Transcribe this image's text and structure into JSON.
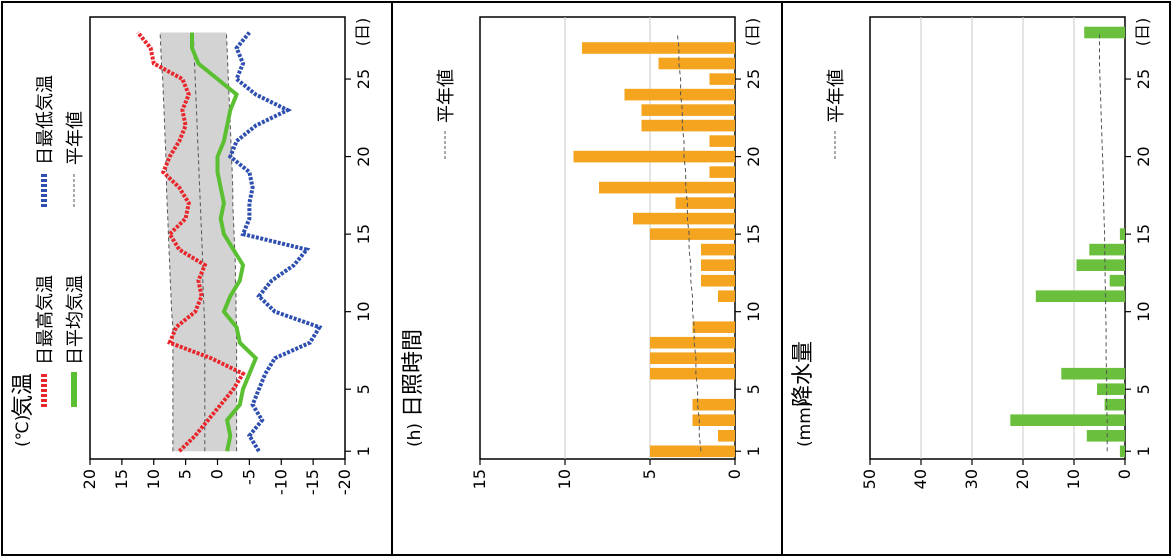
{
  "chart_data": [
    {
      "type": "line",
      "title": "気温",
      "unit_label": "(℃)",
      "xlabel": "(日)",
      "x_ticks": [
        1,
        5,
        10,
        15,
        20,
        25
      ],
      "y_ticks": [
        20,
        15,
        10,
        5,
        0,
        -5,
        -10,
        -15,
        -20
      ],
      "ylim": [
        -20,
        20
      ],
      "xlim": [
        0.5,
        29
      ],
      "grid": false,
      "legend_position": "top-right",
      "legend": [
        "日最高気温",
        "日最低気温",
        "日平均気温",
        "平年値"
      ],
      "colors": {
        "max": "#e8262b",
        "min": "#2e4fb0",
        "avg": "#5bbf32",
        "normal": "#555555",
        "shade": "#d3d3d3"
      },
      "x": [
        1,
        2,
        3,
        4,
        5,
        6,
        7,
        8,
        9,
        10,
        11,
        12,
        13,
        14,
        15,
        16,
        17,
        18,
        19,
        20,
        21,
        22,
        23,
        24,
        25,
        26,
        27,
        28
      ],
      "series": [
        {
          "name": "日最高気温",
          "values": [
            6,
            3.5,
            1.5,
            -0.5,
            -2.5,
            -4,
            1,
            7.5,
            6.5,
            3.5,
            2.5,
            3,
            2,
            6,
            7.5,
            5,
            4.5,
            6,
            8.5,
            7.5,
            6,
            5,
            5.5,
            4.5,
            5.5,
            10,
            10.5,
            12.5
          ]
        },
        {
          "name": "日最低気温",
          "values": [
            -6.5,
            -5,
            -7,
            -5.5,
            -6.5,
            -7.5,
            -9,
            -14.5,
            -16,
            -9,
            -6.5,
            -8.5,
            -12,
            -14,
            -4,
            -5,
            -5,
            -5.5,
            -5,
            -2,
            -3,
            -6,
            -11,
            -6,
            -3,
            -4,
            -3,
            -5
          ]
        },
        {
          "name": "日平均気温",
          "values": [
            -1.5,
            -2,
            -1.5,
            -3.5,
            -4,
            -5,
            -6,
            -3.5,
            -3,
            -1,
            -2,
            -3.5,
            -4,
            -2.5,
            -1,
            -0.5,
            -1,
            -0.5,
            0,
            0,
            -1,
            -1.5,
            -2,
            -3,
            0,
            3,
            4,
            4
          ]
        },
        {
          "name": "平年値 最高",
          "values": [
            7,
            7,
            7,
            7,
            7,
            7,
            7,
            7,
            7,
            7.2,
            7.3,
            7.4,
            7.5,
            7.6,
            7.7,
            7.8,
            7.9,
            8,
            8,
            8.1,
            8.2,
            8.3,
            8.4,
            8.5,
            8.6,
            8.8,
            8.9,
            9
          ]
        },
        {
          "name": "平年値 平均",
          "values": [
            2,
            2,
            2,
            2,
            2,
            2,
            2,
            2,
            2,
            2.1,
            2.2,
            2.3,
            2.3,
            2.4,
            2.5,
            2.6,
            2.7,
            2.8,
            2.9,
            3,
            3.1,
            3.2,
            3.3,
            3.4,
            3.5,
            3.6,
            3.7,
            3.8
          ]
        },
        {
          "name": "平年値 最低",
          "values": [
            -3,
            -3,
            -3,
            -3,
            -3,
            -3,
            -3,
            -3,
            -3,
            -2.9,
            -2.9,
            -2.8,
            -2.8,
            -2.7,
            -2.6,
            -2.5,
            -2.4,
            -2.4,
            -2.3,
            -2.2,
            -2.1,
            -2,
            -1.9,
            -1.8,
            -1.7,
            -1.6,
            -1.5,
            -1.4
          ]
        }
      ]
    },
    {
      "type": "bar",
      "title": "日照時間",
      "unit_label": "(h)",
      "xlabel": "(日)",
      "x_ticks": [
        1,
        5,
        10,
        15,
        20,
        25
      ],
      "y_ticks": [
        15,
        10,
        5,
        0
      ],
      "ylim": [
        0,
        15
      ],
      "xlim": [
        0.5,
        29
      ],
      "grid": true,
      "legend": [
        "平年値"
      ],
      "colors": {
        "bar": "#f5a41f",
        "normal": "#555555",
        "grid": "#c8c8c8"
      },
      "x": [
        1,
        2,
        3,
        4,
        5,
        6,
        7,
        8,
        9,
        10,
        11,
        12,
        13,
        14,
        15,
        16,
        17,
        18,
        19,
        20,
        21,
        22,
        23,
        24,
        25,
        26,
        27,
        28
      ],
      "values": [
        5,
        1,
        2.5,
        2.5,
        0,
        5,
        5,
        5,
        2.5,
        0,
        1,
        2,
        2,
        2,
        5,
        6,
        3.5,
        8,
        1.5,
        9.5,
        1.5,
        5.5,
        5.5,
        6.5,
        1.5,
        4.5,
        9,
        0
      ],
      "normal": [
        2,
        2.1,
        2.1,
        2.2,
        2.2,
        2.3,
        2.3,
        2.4,
        2.4,
        2.5,
        2.5,
        2.6,
        2.6,
        2.7,
        2.7,
        2.8,
        2.8,
        2.9,
        2.9,
        3,
        3,
        3.1,
        3.1,
        3.2,
        3.2,
        3.3,
        3.3,
        3.4
      ]
    },
    {
      "type": "bar",
      "title": "降水量",
      "unit_label": "(mm)",
      "xlabel": "(日)",
      "x_ticks": [
        1,
        5,
        10,
        15,
        20,
        25
      ],
      "y_ticks": [
        50,
        40,
        30,
        20,
        10,
        0
      ],
      "ylim": [
        0,
        50
      ],
      "xlim": [
        0.5,
        29
      ],
      "grid": true,
      "legend": [
        "平年値"
      ],
      "colors": {
        "bar": "#6abf3c",
        "normal": "#555555",
        "grid": "#c8c8c8"
      },
      "x": [
        1,
        2,
        3,
        4,
        5,
        6,
        7,
        8,
        9,
        10,
        11,
        12,
        13,
        14,
        15,
        16,
        17,
        18,
        19,
        20,
        21,
        22,
        23,
        24,
        25,
        26,
        27,
        28
      ],
      "values": [
        1,
        7.5,
        22.5,
        4,
        5.5,
        12.5,
        0,
        0,
        0,
        0,
        17.5,
        3,
        9.5,
        7,
        1,
        0,
        0,
        0,
        0,
        0,
        0,
        0,
        0,
        0,
        0,
        0,
        0,
        8
      ],
      "normal": [
        3.5,
        3.5,
        3.5,
        3.6,
        3.6,
        3.6,
        3.7,
        3.7,
        3.7,
        3.8,
        3.8,
        3.9,
        3.9,
        4,
        4,
        4.1,
        4.2,
        4.2,
        4.3,
        4.4,
        4.5,
        4.6,
        4.7,
        4.8,
        4.9,
        5,
        5,
        5
      ]
    }
  ]
}
